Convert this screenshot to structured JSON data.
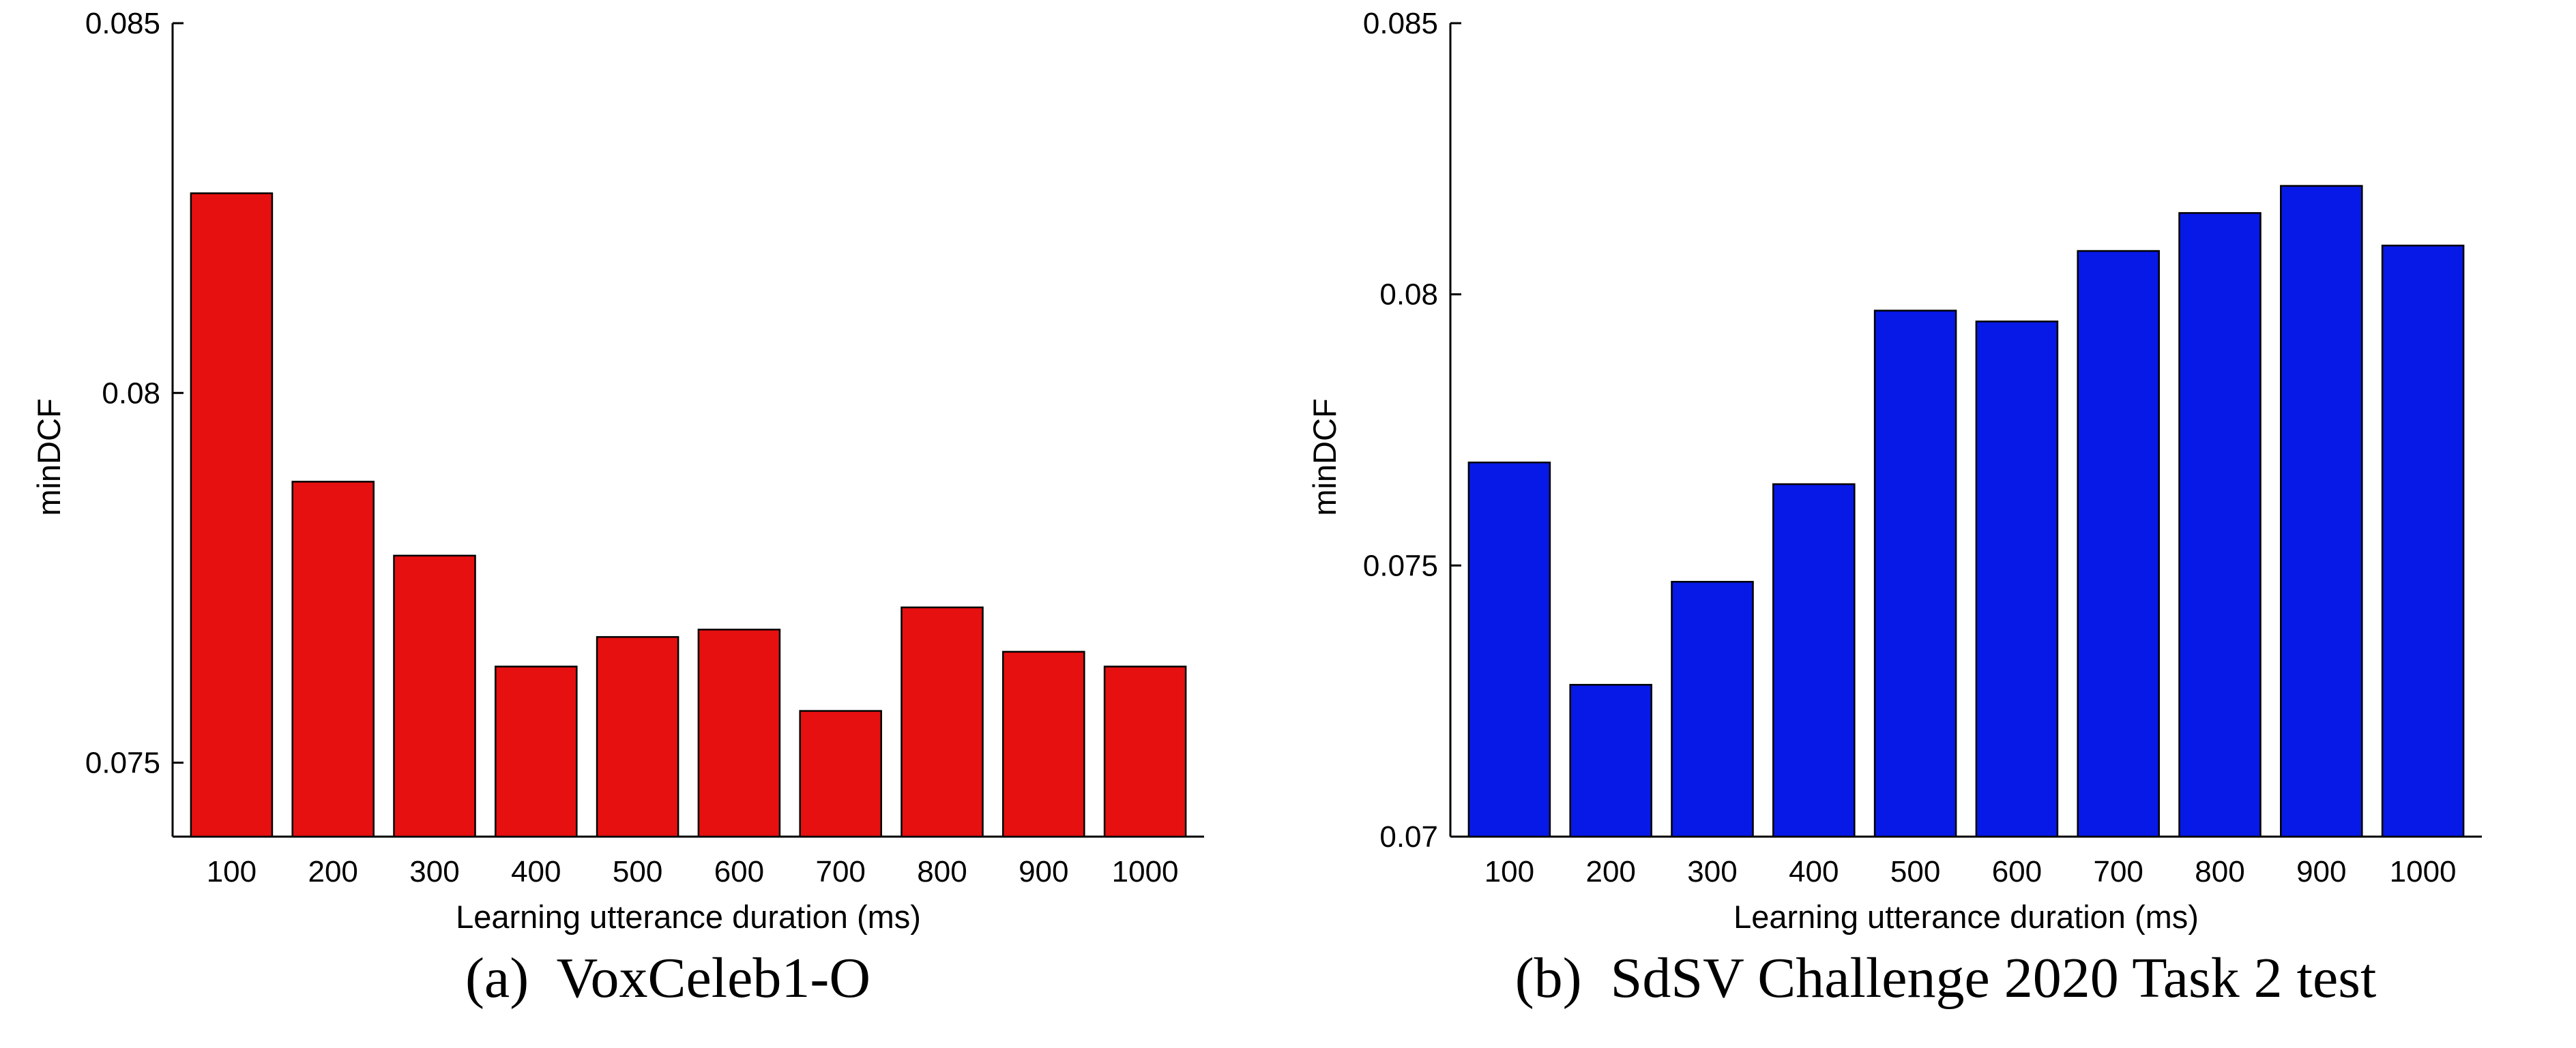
{
  "chart_data": [
    {
      "type": "bar",
      "panel": "(a)",
      "caption": "(a)  VoxCeleb1-O",
      "xlabel": "Learning utterance duration (ms)",
      "ylabel": "minDCF",
      "categories": [
        "100",
        "200",
        "300",
        "400",
        "500",
        "600",
        "700",
        "800",
        "900",
        "1000"
      ],
      "values": [
        0.0827,
        0.0788,
        0.0778,
        0.0763,
        0.0767,
        0.0768,
        0.0757,
        0.0771,
        0.0765,
        0.0763
      ],
      "ylim": [
        0.074,
        0.085
      ],
      "yticks": [
        0.075,
        0.08,
        0.085
      ],
      "ytick_labels": [
        "0.075",
        "0.08",
        "0.085"
      ],
      "bar_color": "#e61010"
    },
    {
      "type": "bar",
      "panel": "(b)",
      "caption": "(b)  SdSV Challenge 2020 Task 2 test",
      "xlabel": "Learning utterance duration (ms)",
      "ylabel": "minDCF",
      "categories": [
        "100",
        "200",
        "300",
        "400",
        "500",
        "600",
        "700",
        "800",
        "900",
        "1000"
      ],
      "values": [
        0.0769,
        0.0728,
        0.0747,
        0.0765,
        0.0797,
        0.0795,
        0.0808,
        0.0815,
        0.082,
        0.0809
      ],
      "ylim": [
        0.07,
        0.085
      ],
      "yticks": [
        0.07,
        0.075,
        0.08,
        0.085
      ],
      "ytick_labels": [
        "0.07",
        "0.075",
        "0.08",
        "0.085"
      ],
      "bar_color": "#0619e6"
    }
  ]
}
